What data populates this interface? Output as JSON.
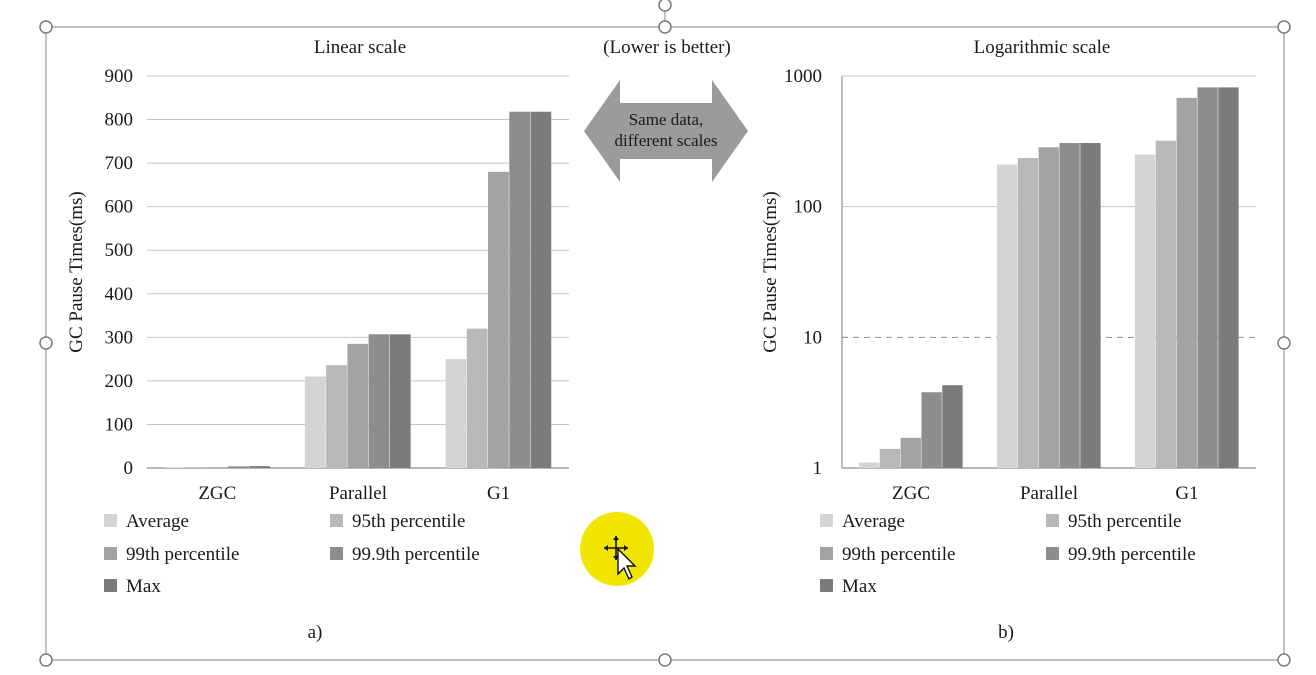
{
  "header_note": "(Lower is better)",
  "arrow_label": [
    "Same data,",
    "different scales"
  ],
  "legend_colors": [
    "#d4d4d4",
    "#b8b8b8",
    "#a3a3a3",
    "#8d8d8d",
    "#7b7b7b"
  ],
  "chart_data": [
    {
      "type": "bar",
      "title": "Linear scale",
      "ylabel": "GC Pause Times(ms)",
      "yscale": "linear",
      "ylim": [
        0,
        900
      ],
      "yticks": [
        "0",
        "100",
        "200",
        "300",
        "400",
        "500",
        "600",
        "700",
        "800",
        "900"
      ],
      "categories": [
        "ZGC",
        "Parallel",
        "G1"
      ],
      "series": [
        {
          "name": "Average",
          "values": [
            1.1,
            210,
            250
          ]
        },
        {
          "name": "95th percentile",
          "values": [
            1.4,
            236,
            320
          ]
        },
        {
          "name": "99th percentile",
          "values": [
            1.7,
            285,
            680
          ]
        },
        {
          "name": "99.9th percentile",
          "values": [
            3.8,
            307,
            818
          ]
        },
        {
          "name": "Max",
          "values": [
            4.3,
            307,
            818
          ]
        }
      ],
      "legend": "bottom",
      "grid": true,
      "caption": "a)"
    },
    {
      "type": "bar",
      "title": "Logarithmic scale",
      "ylabel": "GC Pause Times(ms)",
      "yscale": "log",
      "ylim": [
        1,
        1000
      ],
      "yticks": [
        "1",
        "10",
        "100",
        "1000"
      ],
      "categories": [
        "ZGC",
        "Parallel",
        "G1"
      ],
      "series": [
        {
          "name": "Average",
          "values": [
            1.1,
            210,
            250
          ]
        },
        {
          "name": "95th percentile",
          "values": [
            1.4,
            236,
            320
          ]
        },
        {
          "name": "99th percentile",
          "values": [
            1.7,
            285,
            680
          ]
        },
        {
          "name": "99.9th percentile",
          "values": [
            3.8,
            307,
            818
          ]
        },
        {
          "name": "Max",
          "values": [
            4.3,
            307,
            818
          ]
        }
      ],
      "legend": "bottom",
      "grid": true,
      "caption": "b)"
    }
  ]
}
